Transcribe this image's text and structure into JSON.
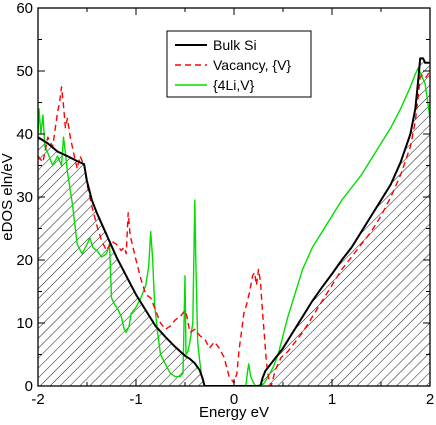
{
  "chart_data": {
    "type": "line",
    "xlabel": "Energy eV",
    "ylabel": "eDOS eln/eV",
    "xlim": [
      -2,
      2
    ],
    "ylim": [
      0,
      60
    ],
    "x_ticks": [
      "-2",
      "-1",
      "0",
      "1",
      "2"
    ],
    "y_ticks": [
      "0",
      "10",
      "20",
      "30",
      "40",
      "50",
      "60"
    ],
    "legend_position": "top-center",
    "series": [
      {
        "name": "Bulk Si",
        "color": "#000000",
        "style": "solid",
        "fill": "hatched",
        "points": [
          [
            -2.0,
            39.5
          ],
          [
            -1.9,
            38.5
          ],
          [
            -1.8,
            37.2
          ],
          [
            -1.7,
            36.5
          ],
          [
            -1.6,
            35.7
          ],
          [
            -1.53,
            35.2
          ],
          [
            -1.5,
            32.5
          ],
          [
            -1.45,
            29.5
          ],
          [
            -1.4,
            27.5
          ],
          [
            -1.3,
            24.0
          ],
          [
            -1.2,
            20.5
          ],
          [
            -1.1,
            17.5
          ],
          [
            -1.0,
            14.5
          ],
          [
            -0.9,
            12.0
          ],
          [
            -0.8,
            9.5
          ],
          [
            -0.7,
            7.8
          ],
          [
            -0.6,
            6.2
          ],
          [
            -0.5,
            4.8
          ],
          [
            -0.45,
            4.3
          ],
          [
            -0.4,
            3.6
          ],
          [
            -0.35,
            2.5
          ],
          [
            -0.32,
            1.2
          ],
          [
            -0.3,
            0.0
          ],
          [
            0.27,
            0.0
          ],
          [
            0.29,
            1.2
          ],
          [
            0.32,
            2.4
          ],
          [
            0.4,
            4.0
          ],
          [
            0.5,
            6.0
          ],
          [
            0.6,
            8.5
          ],
          [
            0.7,
            11.0
          ],
          [
            0.8,
            13.5
          ],
          [
            0.9,
            15.7
          ],
          [
            1.0,
            17.8
          ],
          [
            1.1,
            20.0
          ],
          [
            1.2,
            22.0
          ],
          [
            1.3,
            24.5
          ],
          [
            1.4,
            27.0
          ],
          [
            1.5,
            29.5
          ],
          [
            1.6,
            32.0
          ],
          [
            1.7,
            35.5
          ],
          [
            1.8,
            40.0
          ],
          [
            1.85,
            44.0
          ],
          [
            1.88,
            48.5
          ],
          [
            1.9,
            52.0
          ],
          [
            1.93,
            52.0
          ],
          [
            1.95,
            51.3
          ],
          [
            2.0,
            51.3
          ]
        ]
      },
      {
        "name": "Vacancy, {V}",
        "color": "#ff0000",
        "style": "dashed",
        "points": [
          [
            -2.0,
            36.5
          ],
          [
            -1.95,
            35.5
          ],
          [
            -1.9,
            39.5
          ],
          [
            -1.85,
            38.0
          ],
          [
            -1.8,
            43.5
          ],
          [
            -1.78,
            45.0
          ],
          [
            -1.76,
            47.5
          ],
          [
            -1.74,
            44.5
          ],
          [
            -1.72,
            41.0
          ],
          [
            -1.7,
            42.5
          ],
          [
            -1.67,
            39.5
          ],
          [
            -1.63,
            36.5
          ],
          [
            -1.6,
            34.5
          ],
          [
            -1.57,
            36.5
          ],
          [
            -1.53,
            35.0
          ],
          [
            -1.5,
            32.0
          ],
          [
            -1.45,
            28.5
          ],
          [
            -1.4,
            25.5
          ],
          [
            -1.35,
            23.0
          ],
          [
            -1.3,
            21.5
          ],
          [
            -1.25,
            23.0
          ],
          [
            -1.2,
            22.5
          ],
          [
            -1.15,
            21.5
          ],
          [
            -1.12,
            22.0
          ],
          [
            -1.1,
            21.0
          ],
          [
            -1.08,
            27.5
          ],
          [
            -1.06,
            24.0
          ],
          [
            -1.0,
            20.0
          ],
          [
            -0.95,
            17.0
          ],
          [
            -0.9,
            14.5
          ],
          [
            -0.85,
            14.0
          ],
          [
            -0.8,
            12.0
          ],
          [
            -0.75,
            10.0
          ],
          [
            -0.7,
            9.0
          ],
          [
            -0.65,
            9.5
          ],
          [
            -0.6,
            10.5
          ],
          [
            -0.55,
            11.0
          ],
          [
            -0.5,
            12.0
          ],
          [
            -0.48,
            11.0
          ],
          [
            -0.45,
            8.5
          ],
          [
            -0.4,
            9.0
          ],
          [
            -0.35,
            8.0
          ],
          [
            -0.3,
            7.5
          ],
          [
            -0.25,
            6.0
          ],
          [
            -0.2,
            7.0
          ],
          [
            -0.15,
            6.0
          ],
          [
            -0.1,
            4.5
          ],
          [
            -0.05,
            1.5
          ],
          [
            0.0,
            0.5
          ],
          [
            0.03,
            2.0
          ],
          [
            0.05,
            5.5
          ],
          [
            0.08,
            9.0
          ],
          [
            0.1,
            11.5
          ],
          [
            0.13,
            13.0
          ],
          [
            0.16,
            15.0
          ],
          [
            0.19,
            17.5
          ],
          [
            0.21,
            18.0
          ],
          [
            0.23,
            16.0
          ],
          [
            0.25,
            18.5
          ],
          [
            0.27,
            16.5
          ],
          [
            0.29,
            12.0
          ],
          [
            0.31,
            8.0
          ],
          [
            0.33,
            4.0
          ],
          [
            0.35,
            1.5
          ],
          [
            0.38,
            0.0
          ],
          [
            0.42,
            2.5
          ],
          [
            0.48,
            4.5
          ],
          [
            0.55,
            5.5
          ],
          [
            0.6,
            6.5
          ],
          [
            0.7,
            8.5
          ],
          [
            0.8,
            11.0
          ],
          [
            0.9,
            13.5
          ],
          [
            1.0,
            16.0
          ],
          [
            1.1,
            18.5
          ],
          [
            1.2,
            20.5
          ],
          [
            1.3,
            22.5
          ],
          [
            1.4,
            24.5
          ],
          [
            1.5,
            27.0
          ],
          [
            1.6,
            30.0
          ],
          [
            1.7,
            33.5
          ],
          [
            1.8,
            38.0
          ],
          [
            1.85,
            42.0
          ],
          [
            1.88,
            46.0
          ],
          [
            1.9,
            49.0
          ],
          [
            1.93,
            49.5
          ],
          [
            1.96,
            49.0
          ],
          [
            2.0,
            50.0
          ]
        ]
      },
      {
        "name": "{4Li,V}",
        "color": "#00dd00",
        "style": "solid",
        "points": [
          [
            -2.0,
            40.0
          ],
          [
            -1.99,
            44.0
          ],
          [
            -1.97,
            40.0
          ],
          [
            -1.95,
            43.0
          ],
          [
            -1.93,
            38.0
          ],
          [
            -1.9,
            37.0
          ],
          [
            -1.85,
            35.0
          ],
          [
            -1.8,
            36.5
          ],
          [
            -1.76,
            35.0
          ],
          [
            -1.74,
            39.5
          ],
          [
            -1.72,
            37.0
          ],
          [
            -1.7,
            34.0
          ],
          [
            -1.65,
            29.0
          ],
          [
            -1.6,
            22.5
          ],
          [
            -1.55,
            21.0
          ],
          [
            -1.5,
            22.5
          ],
          [
            -1.47,
            23.5
          ],
          [
            -1.44,
            22.0
          ],
          [
            -1.4,
            21.5
          ],
          [
            -1.35,
            20.5
          ],
          [
            -1.3,
            21.0
          ],
          [
            -1.27,
            22.5
          ],
          [
            -1.25,
            14.0
          ],
          [
            -1.22,
            13.0
          ],
          [
            -1.18,
            12.0
          ],
          [
            -1.15,
            11.0
          ],
          [
            -1.12,
            9.0
          ],
          [
            -1.1,
            8.5
          ],
          [
            -1.07,
            9.5
          ],
          [
            -1.05,
            11.5
          ],
          [
            -1.0,
            12.5
          ],
          [
            -0.95,
            14.0
          ],
          [
            -0.9,
            16.0
          ],
          [
            -0.87,
            19.0
          ],
          [
            -0.85,
            24.5
          ],
          [
            -0.83,
            20.0
          ],
          [
            -0.81,
            13.0
          ],
          [
            -0.78,
            8.5
          ],
          [
            -0.75,
            5.0
          ],
          [
            -0.7,
            3.5
          ],
          [
            -0.65,
            2.0
          ],
          [
            -0.6,
            1.5
          ],
          [
            -0.55,
            1.5
          ],
          [
            -0.52,
            2.0
          ],
          [
            -0.5,
            17.5
          ],
          [
            -0.49,
            5.0
          ],
          [
            -0.47,
            5.5
          ],
          [
            -0.45,
            7.0
          ],
          [
            -0.42,
            10.0
          ],
          [
            -0.4,
            29.5
          ],
          [
            -0.39,
            20.0
          ],
          [
            -0.37,
            7.0
          ],
          [
            -0.35,
            4.0
          ],
          [
            -0.33,
            1.5
          ],
          [
            -0.3,
            0.0
          ],
          [
            0.12,
            0.0
          ],
          [
            0.14,
            2.5
          ],
          [
            0.15,
            3.5
          ],
          [
            0.17,
            1.5
          ],
          [
            0.2,
            0.5
          ],
          [
            0.22,
            0.0
          ],
          [
            0.3,
            0.3
          ],
          [
            0.35,
            1.5
          ],
          [
            0.4,
            3.0
          ],
          [
            0.45,
            5.0
          ],
          [
            0.5,
            8.0
          ],
          [
            0.55,
            11.0
          ],
          [
            0.6,
            13.5
          ],
          [
            0.65,
            16.0
          ],
          [
            0.7,
            18.5
          ],
          [
            0.8,
            22.0
          ],
          [
            0.9,
            24.5
          ],
          [
            1.0,
            27.0
          ],
          [
            1.1,
            29.5
          ],
          [
            1.2,
            31.5
          ],
          [
            1.3,
            33.5
          ],
          [
            1.4,
            36.0
          ],
          [
            1.5,
            38.5
          ],
          [
            1.6,
            41.0
          ],
          [
            1.7,
            44.0
          ],
          [
            1.8,
            47.5
          ],
          [
            1.85,
            49.5
          ],
          [
            1.88,
            50.5
          ],
          [
            1.92,
            49.0
          ],
          [
            1.95,
            48.0
          ],
          [
            2.0,
            42.5
          ]
        ]
      }
    ]
  }
}
